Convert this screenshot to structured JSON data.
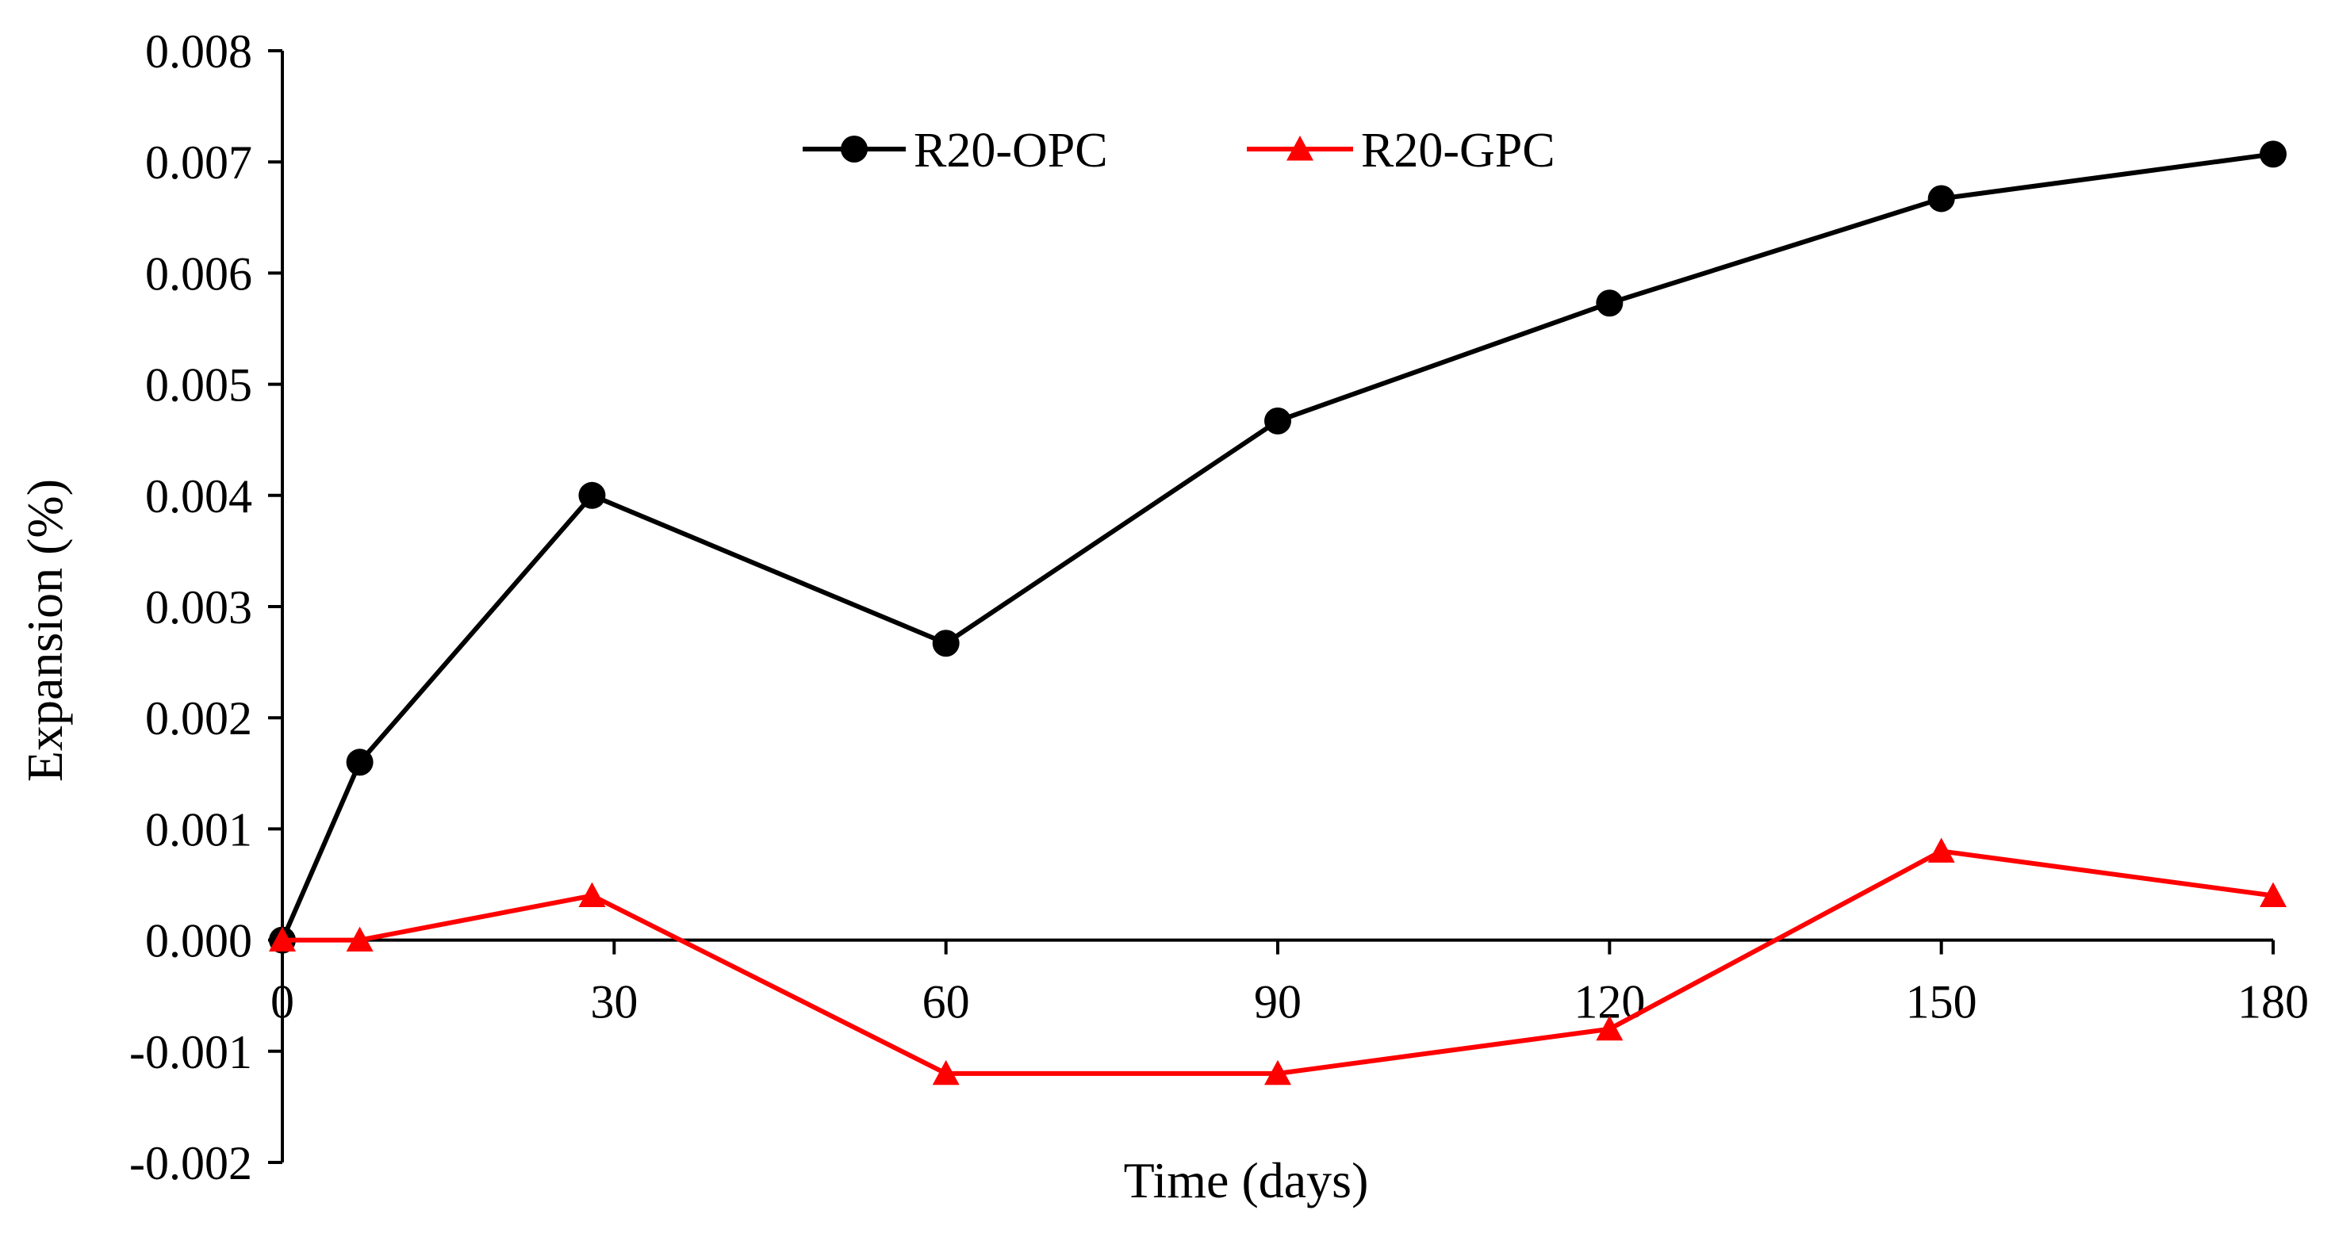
{
  "chart_data": {
    "type": "line",
    "title": "",
    "xlabel": "Time (days)",
    "ylabel": "Expansion (%)",
    "xlim": [
      0,
      180
    ],
    "ylim": [
      -0.002,
      0.008
    ],
    "xticks": [
      0,
      30,
      60,
      90,
      120,
      150,
      180
    ],
    "xtick_labels": [
      "0",
      "30",
      "60",
      "90",
      "120",
      "150",
      "180"
    ],
    "yticks": [
      -0.002,
      -0.001,
      0.0,
      0.001,
      0.002,
      0.003,
      0.004,
      0.005,
      0.006,
      0.007,
      0.008
    ],
    "ytick_labels": [
      "-0.002",
      "-0.001",
      "0.000",
      "0.001",
      "0.002",
      "0.003",
      "0.004",
      "0.005",
      "0.006",
      "0.007",
      "0.008"
    ],
    "grid": false,
    "legend_position": "top-center",
    "series": [
      {
        "name": "R20-OPC",
        "color": "#000000",
        "marker": "circle",
        "x": [
          0,
          7,
          28,
          60,
          90,
          120,
          150,
          180
        ],
        "y": [
          0.0,
          0.0016,
          0.004,
          0.00267,
          0.00467,
          0.00573,
          0.00667,
          0.00707
        ]
      },
      {
        "name": "R20-GPC",
        "color": "#ff0000",
        "marker": "triangle",
        "x": [
          0,
          7,
          28,
          60,
          90,
          120,
          150,
          180
        ],
        "y": [
          0.0,
          0.0,
          0.0004,
          -0.0012,
          -0.0012,
          -0.0008,
          0.0008,
          0.0004
        ]
      }
    ]
  }
}
